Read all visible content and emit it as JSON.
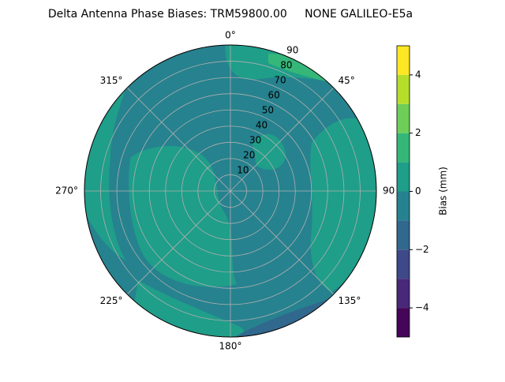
{
  "chart_data": {
    "type": "polar-contour",
    "title": "Delta Antenna Phase Biases: TRM59800.00     NONE GALILEO-E5a",
    "rlim": [
      0,
      90
    ],
    "rticks": [
      10,
      20,
      30,
      40,
      50,
      60,
      70,
      80,
      90
    ],
    "thetaticks": [
      {
        "value": 0,
        "label": "0°"
      },
      {
        "value": 45,
        "label": "45°"
      },
      {
        "value": 90,
        "label": "90"
      },
      {
        "value": 135,
        "label": "135°"
      },
      {
        "value": 180,
        "label": "180°"
      },
      {
        "value": 225,
        "label": "225°"
      },
      {
        "value": 270,
        "label": "270°"
      },
      {
        "value": 315,
        "label": "315°"
      }
    ],
    "grid": true,
    "colorbar": {
      "label": "Bias (mm)",
      "levels": [
        -5,
        -4,
        -3,
        -2,
        -1,
        0,
        1,
        2,
        3,
        4,
        5
      ],
      "colors": [
        "#450559",
        "#482878",
        "#3e4989",
        "#31688e",
        "#26828e",
        "#1f9e89",
        "#35b779",
        "#6ece58",
        "#b5de2b",
        "#fde725"
      ],
      "ylim": [
        -5,
        5
      ],
      "yticks": [
        {
          "value": -4,
          "label": "−4"
        },
        {
          "value": -2,
          "label": "−2"
        },
        0,
        2,
        4
      ]
    }
  }
}
